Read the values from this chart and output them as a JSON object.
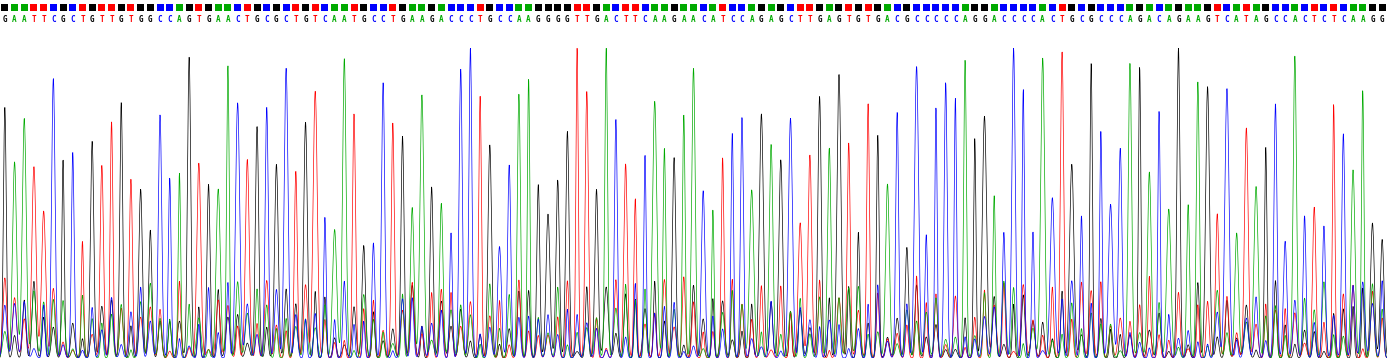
{
  "sequence": "GAATTCGCTGTTGTGGCCAGTGAACTGCGCTGTCAATGCCTGAAGACCCTGCCAAGGGGTTGACTTCAAGAACATCCAGAGCTTGAGTGTGACGCCCCCAGGACCCCACTGCGCCCAGACAGAAGTCATAGCCACTCTCAAGG",
  "background_color": "#ffffff",
  "nucleotide_colors": {
    "A": "#00aa00",
    "T": "#ff0000",
    "G": "#000000",
    "C": "#0000ff"
  },
  "fig_width": 13.87,
  "fig_height": 3.58,
  "dpi": 100
}
